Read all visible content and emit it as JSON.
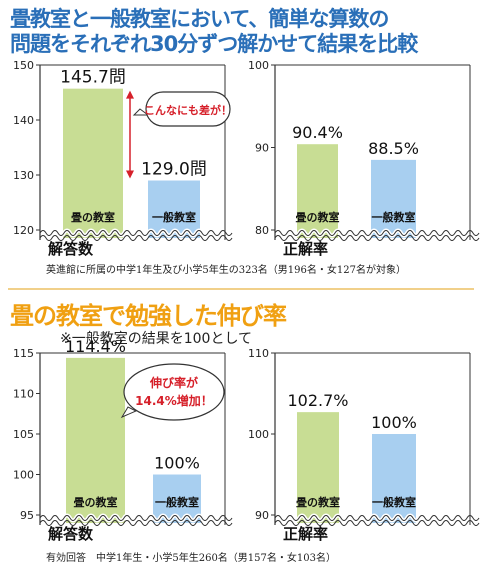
{
  "titles": {
    "top_line1": "畳教室と一般教室において、簡単な算数の",
    "top_line2": "問題をそれぞれ30分ずつ解かせて結果を比較",
    "bottom": "畳の教室で勉強した伸び率",
    "bottom_note": "※一般教室の結果を100として"
  },
  "notes": {
    "top": "英進館に所属の中学1年生及び小学5年生の323名（男196名・女127名が対象）",
    "bottom": "有効回答　中学1年生・小学5年生260名（男157名・女103名）"
  },
  "colors": {
    "green_bar": "#c8dd94",
    "blue_bar": "#a8cff0",
    "callout_text": "#d6202a",
    "arrow": "#d6202a"
  },
  "chart_data": [
    {
      "id": "top-left",
      "type": "bar",
      "xlabel": "解答数",
      "categories": [
        "畳の教室",
        "一般教室"
      ],
      "values": [
        145.7,
        129.0
      ],
      "value_labels": [
        "145.7問",
        "129.0問"
      ],
      "ylim": [
        120,
        150
      ],
      "yticks": [
        120,
        130,
        140,
        150
      ],
      "callout": "こんなにも差が！"
    },
    {
      "id": "top-right",
      "type": "bar",
      "xlabel": "正解率",
      "categories": [
        "畳の教室",
        "一般教室"
      ],
      "values": [
        90.4,
        88.5
      ],
      "value_labels": [
        "90.4%",
        "88.5%"
      ],
      "ylim": [
        80,
        100
      ],
      "yticks": [
        80,
        90,
        100
      ]
    },
    {
      "id": "bottom-left",
      "type": "bar",
      "xlabel": "解答数",
      "categories": [
        "畳の教室",
        "一般教室"
      ],
      "values": [
        114.4,
        100
      ],
      "value_labels": [
        "114.4%",
        "100%"
      ],
      "ylim": [
        95,
        115
      ],
      "yticks": [
        95,
        100,
        105,
        110,
        115
      ],
      "callout": [
        "伸び率が",
        "14.4%増加！"
      ]
    },
    {
      "id": "bottom-right",
      "type": "bar",
      "xlabel": "正解率",
      "categories": [
        "畳の教室",
        "一般教室"
      ],
      "values": [
        102.7,
        100
      ],
      "value_labels": [
        "102.7%",
        "100%"
      ],
      "ylim": [
        90,
        110
      ],
      "yticks": [
        90,
        100,
        110
      ]
    }
  ]
}
